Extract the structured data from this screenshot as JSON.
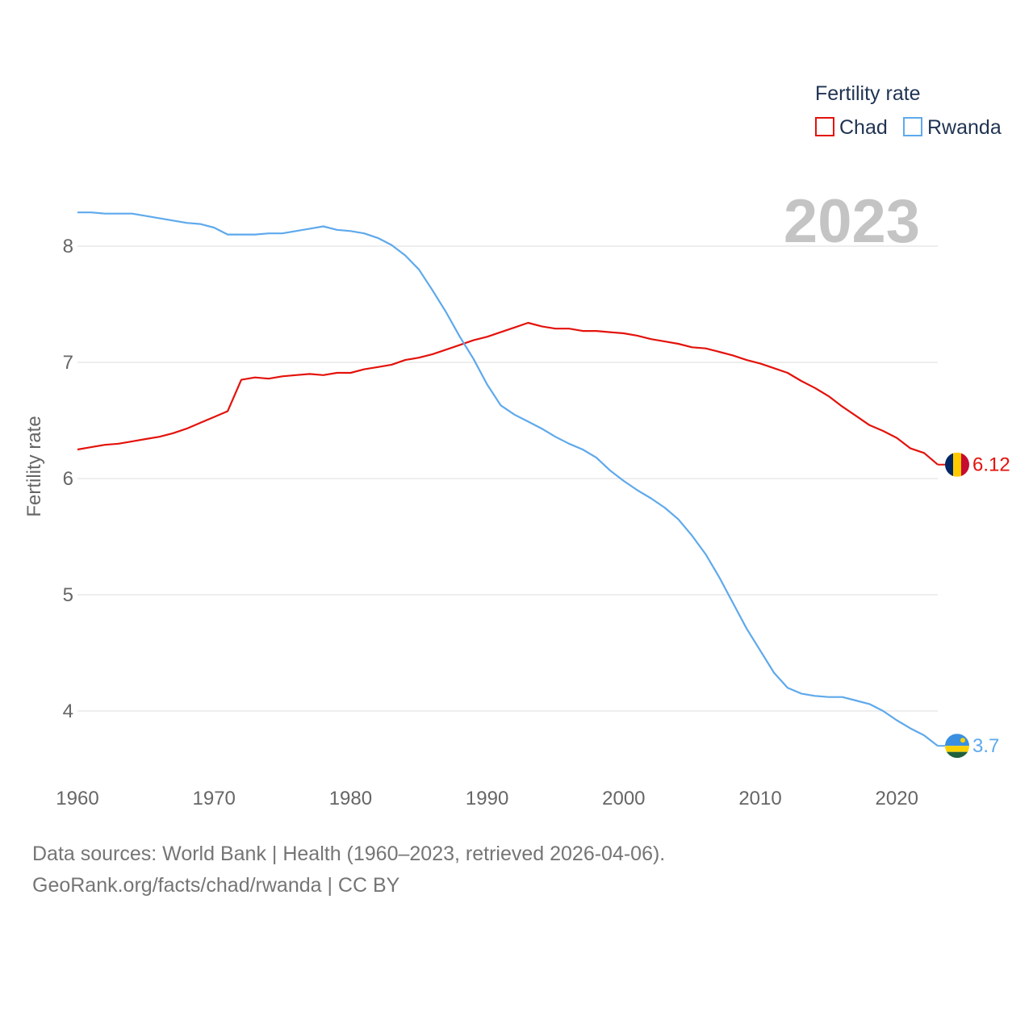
{
  "chart_data": {
    "type": "line",
    "title": "",
    "ylabel": "Fertility rate",
    "xlabel": "",
    "big_year_label": "2023",
    "xlim": [
      1960,
      2023
    ],
    "ylim": [
      3.5,
      8.5
    ],
    "x_ticks": [
      1960,
      1970,
      1980,
      1990,
      2000,
      2010,
      2020
    ],
    "y_ticks": [
      4,
      5,
      6,
      7,
      8
    ],
    "grid": true,
    "legend": {
      "title": "Fertility rate",
      "position": "top-right"
    },
    "x": [
      1960,
      1961,
      1962,
      1963,
      1964,
      1965,
      1966,
      1967,
      1968,
      1969,
      1970,
      1971,
      1972,
      1973,
      1974,
      1975,
      1976,
      1977,
      1978,
      1979,
      1980,
      1981,
      1982,
      1983,
      1984,
      1985,
      1986,
      1987,
      1988,
      1989,
      1990,
      1991,
      1992,
      1993,
      1994,
      1995,
      1996,
      1997,
      1998,
      1999,
      2000,
      2001,
      2002,
      2003,
      2004,
      2005,
      2006,
      2007,
      2008,
      2009,
      2010,
      2011,
      2012,
      2013,
      2014,
      2015,
      2016,
      2017,
      2018,
      2019,
      2020,
      2021,
      2022,
      2023
    ],
    "series": [
      {
        "name": "Chad",
        "color": "#e3120b",
        "end_label": "6.12",
        "values": [
          6.25,
          6.27,
          6.29,
          6.3,
          6.32,
          6.34,
          6.36,
          6.39,
          6.43,
          6.48,
          6.53,
          6.58,
          6.85,
          6.87,
          6.86,
          6.88,
          6.89,
          6.9,
          6.89,
          6.91,
          6.91,
          6.94,
          6.96,
          6.98,
          7.02,
          7.04,
          7.07,
          7.11,
          7.15,
          7.19,
          7.22,
          7.26,
          7.3,
          7.34,
          7.31,
          7.29,
          7.29,
          7.27,
          7.27,
          7.26,
          7.25,
          7.23,
          7.2,
          7.18,
          7.16,
          7.13,
          7.12,
          7.09,
          7.06,
          7.02,
          6.99,
          6.95,
          6.91,
          6.84,
          6.78,
          6.71,
          6.62,
          6.54,
          6.46,
          6.41,
          6.35,
          6.26,
          6.22,
          6.12
        ]
      },
      {
        "name": "Rwanda",
        "color": "#5ea9ec",
        "end_label": "3.7",
        "values": [
          8.29,
          8.29,
          8.28,
          8.28,
          8.28,
          8.26,
          8.24,
          8.22,
          8.2,
          8.19,
          8.16,
          8.1,
          8.1,
          8.1,
          8.11,
          8.11,
          8.13,
          8.15,
          8.17,
          8.14,
          8.13,
          8.11,
          8.07,
          8.01,
          7.92,
          7.8,
          7.62,
          7.43,
          7.22,
          7.03,
          6.81,
          6.63,
          6.55,
          6.49,
          6.43,
          6.36,
          6.3,
          6.25,
          6.18,
          6.07,
          5.98,
          5.9,
          5.83,
          5.75,
          5.65,
          5.51,
          5.35,
          5.15,
          4.93,
          4.71,
          4.52,
          4.33,
          4.2,
          4.15,
          4.13,
          4.12,
          4.12,
          4.09,
          4.06,
          4.0,
          3.92,
          3.85,
          3.79,
          3.7
        ]
      }
    ]
  },
  "footer": {
    "line1": "Data sources: World Bank | Health (1960–2023, retrieved 2026-04-06).",
    "line2": "GeoRank.org/facts/chad/rwanda | CC BY"
  }
}
